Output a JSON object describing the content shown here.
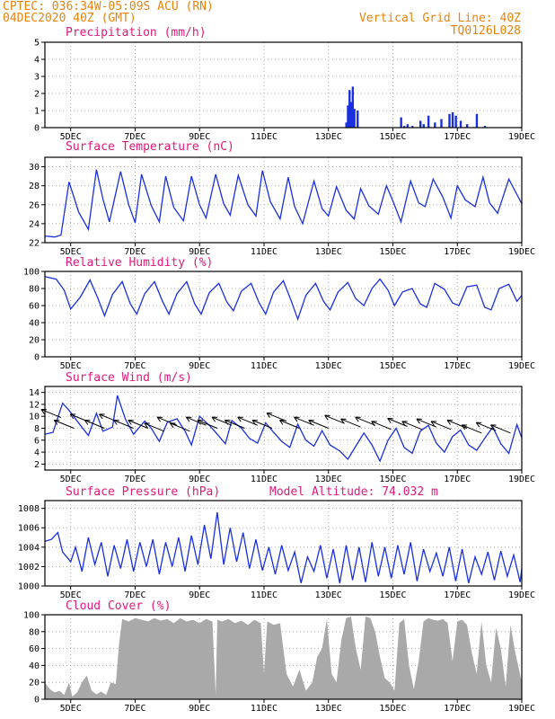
{
  "header": {
    "station": "CPTEC:   036:34W-05:09S   ACU (RN)",
    "run": "04DEC2020 40Z (GMT)",
    "grid_line": "Vertical Grid Line: 40Z",
    "code": "TQ0126L028"
  },
  "x_axis": {
    "ticks": [
      "5DEC",
      "7DEC",
      "9DEC",
      "11DEC",
      "13DEC",
      "15DEC",
      "17DEC",
      "19DEC"
    ],
    "tick_days": [
      5,
      7,
      9,
      11,
      13,
      15,
      17,
      19
    ],
    "range_days": [
      4.2,
      19.0
    ]
  },
  "colors": {
    "line": "#1a2fe0",
    "cloud": "#a9a9a9",
    "title": "#e0197a",
    "header": "#e8830c"
  },
  "chart_data": [
    {
      "type": "bar",
      "title": "Precipitation (mm/h)",
      "ylim": [
        0,
        5
      ],
      "yticks": [
        0,
        1,
        2,
        3,
        4,
        5
      ],
      "x": [
        13.55,
        13.6,
        13.65,
        13.7,
        13.75,
        13.8,
        13.9,
        15.25,
        15.35,
        15.45,
        15.6,
        15.85,
        15.95,
        16.1,
        16.3,
        16.5,
        16.75,
        16.85,
        16.95,
        17.1,
        17.3,
        17.6,
        17.85
      ],
      "values": [
        0.3,
        1.3,
        2.2,
        1.5,
        2.4,
        1.1,
        1.0,
        0.6,
        0.1,
        0.2,
        0.1,
        0.4,
        0.2,
        0.7,
        0.3,
        0.5,
        0.8,
        0.9,
        0.7,
        0.4,
        0.2,
        0.8,
        0.1
      ]
    },
    {
      "type": "line",
      "title": "Surface Temperature (nC)",
      "ylim": [
        22,
        31
      ],
      "yticks": [
        22,
        24,
        26,
        28,
        30
      ],
      "x": [
        4.2,
        4.5,
        4.7,
        4.95,
        5.25,
        5.55,
        5.8,
        6.0,
        6.2,
        6.55,
        6.8,
        7.0,
        7.2,
        7.5,
        7.75,
        7.95,
        8.2,
        8.5,
        8.75,
        9.0,
        9.2,
        9.5,
        9.75,
        9.95,
        10.2,
        10.5,
        10.75,
        10.95,
        11.2,
        11.5,
        11.75,
        11.95,
        12.2,
        12.55,
        12.8,
        13.0,
        13.25,
        13.55,
        13.8,
        14.0,
        14.25,
        14.55,
        14.8,
        15.0,
        15.25,
        15.55,
        15.8,
        16.0,
        16.25,
        16.55,
        16.8,
        17.0,
        17.25,
        17.55,
        17.8,
        18.0,
        18.25,
        18.6,
        18.8,
        19.0
      ],
      "values": [
        22.7,
        22.6,
        22.8,
        28.4,
        25.2,
        23.4,
        29.7,
        26.6,
        24.2,
        29.5,
        26.0,
        24.1,
        29.2,
        25.9,
        24.2,
        29.0,
        25.7,
        24.3,
        29.0,
        26.0,
        24.6,
        29.2,
        26.1,
        24.9,
        29.1,
        26.0,
        24.8,
        29.6,
        26.3,
        24.5,
        28.9,
        25.8,
        24.0,
        28.5,
        25.6,
        24.8,
        27.9,
        25.4,
        24.5,
        27.7,
        25.9,
        25.0,
        28.0,
        26.4,
        24.2,
        28.5,
        26.2,
        25.8,
        28.7,
        26.8,
        24.6,
        28.0,
        26.5,
        25.8,
        28.9,
        26.2,
        25.1,
        28.7,
        27.4,
        26.1
      ],
      "xlabel": "",
      "ylabel": ""
    },
    {
      "type": "line",
      "title": "Relative Humidity (%)",
      "ylim": [
        0,
        100
      ],
      "yticks": [
        0,
        20,
        40,
        60,
        80,
        100
      ],
      "x": [
        4.2,
        4.55,
        4.8,
        5.0,
        5.3,
        5.6,
        5.85,
        6.05,
        6.3,
        6.6,
        6.85,
        7.05,
        7.3,
        7.6,
        7.85,
        8.05,
        8.3,
        8.6,
        8.85,
        9.05,
        9.3,
        9.6,
        9.85,
        10.05,
        10.3,
        10.6,
        10.85,
        11.05,
        11.3,
        11.6,
        11.85,
        12.05,
        12.3,
        12.6,
        12.85,
        13.05,
        13.3,
        13.6,
        13.85,
        14.1,
        14.35,
        14.6,
        14.85,
        15.05,
        15.3,
        15.6,
        15.85,
        16.05,
        16.3,
        16.6,
        16.85,
        17.05,
        17.3,
        17.6,
        17.85,
        18.05,
        18.3,
        18.6,
        18.85,
        19.0
      ],
      "values": [
        94,
        91,
        78,
        56,
        70,
        90,
        68,
        48,
        73,
        88,
        62,
        50,
        74,
        88,
        65,
        50,
        74,
        88,
        62,
        50,
        75,
        86,
        64,
        54,
        77,
        86,
        63,
        50,
        76,
        89,
        65,
        44,
        72,
        86,
        65,
        55,
        76,
        87,
        68,
        60,
        80,
        91,
        78,
        60,
        76,
        80,
        62,
        58,
        86,
        79,
        63,
        60,
        82,
        84,
        58,
        55,
        80,
        85,
        65,
        72
      ],
      "xlabel": "",
      "ylabel": ""
    },
    {
      "type": "line",
      "title": "Surface Wind (m/s)",
      "ylim": [
        1,
        15
      ],
      "yticks": [
        2,
        4,
        6,
        8,
        10,
        12,
        14
      ],
      "x": [
        4.2,
        4.45,
        4.75,
        4.95,
        5.3,
        5.55,
        5.8,
        6.0,
        6.3,
        6.45,
        6.7,
        6.95,
        7.3,
        7.5,
        7.75,
        8.0,
        8.3,
        8.55,
        8.75,
        9.0,
        9.3,
        9.55,
        9.8,
        10.0,
        10.3,
        10.55,
        10.8,
        11.05,
        11.3,
        11.55,
        11.8,
        12.05,
        12.3,
        12.55,
        12.8,
        13.05,
        13.35,
        13.6,
        13.85,
        14.1,
        14.35,
        14.6,
        14.85,
        15.1,
        15.35,
        15.6,
        15.85,
        16.1,
        16.35,
        16.6,
        16.85,
        17.1,
        17.35,
        17.6,
        17.85,
        18.1,
        18.35,
        18.6,
        18.85,
        19.0
      ],
      "values": [
        7.0,
        7.3,
        12.2,
        11.0,
        8.5,
        6.8,
        10.5,
        7.5,
        8.2,
        13.5,
        9.5,
        7.0,
        9.2,
        8.0,
        5.8,
        9.0,
        9.6,
        7.5,
        5.2,
        10.0,
        8.5,
        7.0,
        5.4,
        9.3,
        8.0,
        6.3,
        5.5,
        8.9,
        7.3,
        5.8,
        4.8,
        8.7,
        6.0,
        5.0,
        7.6,
        5.2,
        4.2,
        2.8,
        5.0,
        7.2,
        5.2,
        2.5,
        6.0,
        8.0,
        4.8,
        3.8,
        7.5,
        8.5,
        5.5,
        4.0,
        6.6,
        7.7,
        5.2,
        4.3,
        6.3,
        8.2,
        5.4,
        3.8,
        8.6,
        6.4
      ],
      "vectors": {
        "x": [
          4.7,
          5.1,
          5.6,
          6.05,
          6.5,
          6.95,
          7.4,
          7.9,
          8.3,
          8.7,
          9.2,
          9.55,
          10.0,
          10.4,
          10.8,
          11.25,
          11.7,
          12.1,
          12.55,
          13.0,
          13.5,
          14.0,
          14.45,
          14.95,
          15.45,
          15.9,
          16.35,
          16.8,
          17.3,
          17.75,
          18.2,
          18.65
        ],
        "y": [
          9.8,
          8.0,
          9.0,
          8.0,
          9.0,
          8.0,
          8.0,
          7.5,
          8.5,
          7.5,
          8.5,
          8.0,
          8.5,
          8.0,
          8.5,
          8.0,
          9.2,
          8.0,
          8.5,
          8.0,
          8.8,
          8.2,
          8.5,
          7.8,
          8.3,
          7.8,
          8.2,
          7.8,
          8.0,
          7.2,
          7.6,
          7.2
        ]
      },
      "xlabel": "",
      "ylabel": ""
    },
    {
      "type": "line",
      "title": "Surface Pressure (hPa)",
      "annotation": "Model Altitude: 74.032 m",
      "ylim": [
        1000,
        1008.8
      ],
      "yticks": [
        1000,
        1002,
        1004,
        1006,
        1008
      ],
      "x": [
        4.2,
        4.4,
        4.6,
        4.75,
        5.0,
        5.15,
        5.35,
        5.55,
        5.75,
        5.95,
        6.15,
        6.35,
        6.55,
        6.75,
        6.95,
        7.15,
        7.35,
        7.55,
        7.75,
        7.95,
        8.15,
        8.35,
        8.55,
        8.75,
        8.95,
        9.15,
        9.35,
        9.55,
        9.75,
        9.95,
        10.15,
        10.35,
        10.55,
        10.75,
        10.95,
        11.15,
        11.35,
        11.55,
        11.75,
        11.95,
        12.15,
        12.35,
        12.55,
        12.75,
        12.95,
        13.15,
        13.35,
        13.55,
        13.75,
        13.95,
        14.15,
        14.35,
        14.55,
        14.75,
        14.95,
        15.15,
        15.35,
        15.55,
        15.75,
        15.95,
        16.15,
        16.35,
        16.55,
        16.75,
        16.95,
        17.15,
        17.35,
        17.55,
        17.75,
        17.95,
        18.15,
        18.35,
        18.55,
        18.75,
        18.95,
        19.0
      ],
      "values": [
        1004.6,
        1004.8,
        1005.5,
        1003.5,
        1002.5,
        1004.0,
        1001.5,
        1005.0,
        1002.2,
        1004.5,
        1001.0,
        1004.2,
        1001.8,
        1004.8,
        1001.5,
        1004.5,
        1002.0,
        1004.8,
        1001.2,
        1004.5,
        1002.0,
        1005.0,
        1001.5,
        1005.2,
        1002.2,
        1006.3,
        1002.8,
        1007.6,
        1002.2,
        1006.0,
        1002.5,
        1005.5,
        1001.8,
        1004.8,
        1001.6,
        1004.0,
        1001.2,
        1004.2,
        1001.6,
        1003.5,
        1000.3,
        1003.0,
        1001.5,
        1004.2,
        1000.8,
        1003.8,
        1000.3,
        1004.2,
        1000.6,
        1004.0,
        1000.4,
        1004.5,
        1001.0,
        1004.0,
        1000.8,
        1004.2,
        1001.2,
        1004.5,
        1000.5,
        1003.8,
        1001.5,
        1003.4,
        1001.0,
        1004.0,
        1000.5,
        1003.8,
        1000.3,
        1003.0,
        1001.2,
        1003.5,
        1000.6,
        1003.6,
        1001.0,
        1003.2,
        1000.4,
        1001.8
      ],
      "xlabel": "",
      "ylabel": ""
    },
    {
      "type": "area",
      "title": "Cloud Cover (%)",
      "ylim": [
        0,
        100
      ],
      "yticks": [
        0,
        20,
        40,
        60,
        80,
        100
      ],
      "x": [
        4.2,
        4.35,
        4.5,
        4.65,
        4.8,
        4.95,
        5.05,
        5.2,
        5.35,
        5.5,
        5.65,
        5.8,
        5.95,
        6.1,
        6.25,
        6.4,
        6.5,
        6.6,
        6.8,
        7.0,
        7.2,
        7.4,
        7.6,
        7.8,
        8.0,
        8.2,
        8.4,
        8.6,
        8.8,
        9.0,
        9.2,
        9.4,
        9.5,
        9.55,
        9.7,
        9.9,
        10.1,
        10.3,
        10.5,
        10.7,
        10.9,
        11.0,
        11.1,
        11.3,
        11.5,
        11.7,
        11.9,
        12.1,
        12.3,
        12.5,
        12.65,
        12.8,
        12.95,
        13.1,
        13.25,
        13.4,
        13.55,
        13.7,
        13.85,
        14.0,
        14.15,
        14.3,
        14.45,
        14.6,
        14.75,
        14.9,
        15.05,
        15.2,
        15.35,
        15.5,
        15.65,
        15.8,
        15.95,
        16.1,
        16.25,
        16.4,
        16.55,
        16.7,
        16.85,
        17.0,
        17.15,
        17.3,
        17.45,
        17.6,
        17.75,
        17.9,
        18.05,
        18.2,
        18.35,
        18.5,
        18.65,
        18.8,
        19.0
      ],
      "values": [
        20,
        12,
        8,
        10,
        5,
        20,
        3,
        8,
        20,
        28,
        10,
        6,
        9,
        5,
        20,
        18,
        65,
        95,
        92,
        96,
        94,
        92,
        96,
        93,
        95,
        90,
        96,
        92,
        94,
        90,
        95,
        92,
        5,
        94,
        92,
        95,
        90,
        93,
        88,
        94,
        90,
        30,
        92,
        88,
        90,
        30,
        15,
        35,
        10,
        20,
        50,
        60,
        95,
        30,
        20,
        70,
        96,
        98,
        60,
        35,
        98,
        96,
        80,
        50,
        25,
        20,
        10,
        90,
        95,
        40,
        12,
        45,
        92,
        96,
        94,
        93,
        95,
        90,
        45,
        92,
        94,
        88,
        55,
        30,
        92,
        40,
        20,
        85,
        60,
        15,
        88,
        55,
        20
      ],
      "xlabel": "",
      "ylabel": ""
    }
  ]
}
